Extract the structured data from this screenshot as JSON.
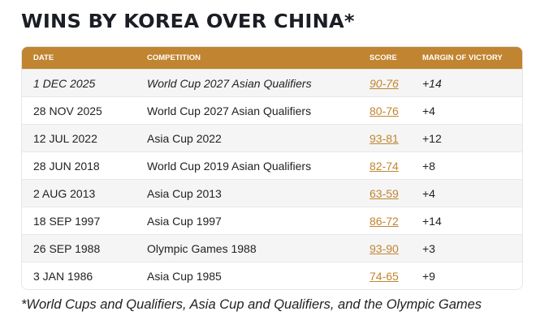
{
  "title": "WINS BY KOREA OVER CHINA*",
  "accent": "#c18430",
  "columns": [
    "DATE",
    "COMPETITION",
    "SCORE",
    "MARGIN OF VICTORY"
  ],
  "rows": [
    [
      "1 DEC 2025",
      "World Cup 2027 Asian Qualifiers",
      "90-76",
      "+14"
    ],
    [
      "28 NOV 2025",
      "World Cup 2027 Asian Qualifiers",
      "80-76",
      "+4"
    ],
    [
      "12 JUL 2022",
      "Asia Cup 2022",
      "93-81",
      "+12"
    ],
    [
      "28 JUN 2018",
      "World Cup 2019 Asian Qualifiers",
      "82-74",
      "+8"
    ],
    [
      "2 AUG 2013",
      "Asia Cup 2013",
      "63-59",
      "+4"
    ],
    [
      "18 SEP 1997",
      "Asia Cup 1997",
      "86-72",
      "+14"
    ],
    [
      "26 SEP 1988",
      "Olympic Games 1988",
      "93-90",
      "+3"
    ],
    [
      "3 JAN 1986",
      "Asia Cup 1985",
      "74-65",
      "+9"
    ]
  ],
  "footnote": "*World Cups and Qualifiers, Asia Cup and Qualifiers, and the Olympic Games"
}
